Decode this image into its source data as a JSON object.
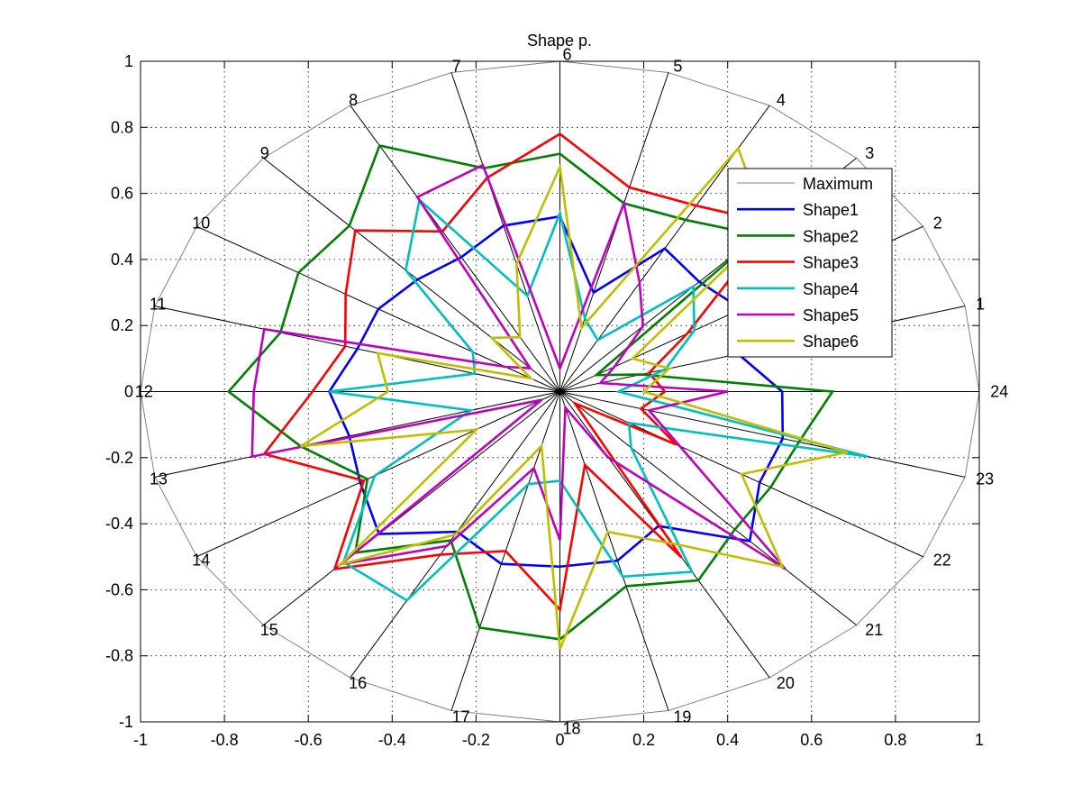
{
  "chart_data": {
    "type": "radar",
    "title": "Shape p.",
    "xlim": [
      -1,
      1
    ],
    "ylim": [
      -1,
      1
    ],
    "x_ticks": [
      -1,
      -0.8,
      -0.6,
      -0.4,
      -0.2,
      0,
      0.2,
      0.4,
      0.6,
      0.8,
      1
    ],
    "y_ticks": [
      -1,
      -0.8,
      -0.6,
      -0.4,
      -0.2,
      0,
      0.2,
      0.4,
      0.6,
      0.8,
      1
    ],
    "x_tick_labels": [
      "-1",
      "-0.8",
      "-0.6",
      "-0.4",
      "-0.2",
      "0",
      "0.2",
      "0.4",
      "0.6",
      "0.8",
      "1"
    ],
    "y_tick_labels": [
      "-1",
      "-0.8",
      "-0.6",
      "-0.4",
      "-0.2",
      "0",
      "0.2",
      "0.4",
      "0.6",
      "0.8",
      "1"
    ],
    "grid": true,
    "legend_position": "top-right",
    "spoke_labels": [
      "1",
      "2",
      "3",
      "4",
      "5",
      "6",
      "7",
      "8",
      "9",
      "10",
      "11",
      "12",
      "13",
      "14",
      "15",
      "16",
      "17",
      "18",
      "19",
      "20",
      "21",
      "22",
      "23",
      "24"
    ],
    "maximum": {
      "name": "Maximum",
      "color": "#808080",
      "radius": 1
    },
    "series": [
      {
        "name": "Shape1",
        "color": "#0000ff",
        "values": [
          0.44,
          0.5,
          0.47,
          0.5,
          0.31,
          0.53,
          0.52,
          0.47,
          0.48,
          0.5,
          0.5,
          0.55,
          0.52,
          0.55,
          0.61,
          0.49,
          0.54,
          0.53,
          0.53,
          0.47,
          0.64,
          0.55,
          0.55,
          0.53
        ]
      },
      {
        "name": "Shape2",
        "color": "#008000",
        "values": [
          0.2,
          0.1,
          0.67,
          0.6,
          0.59,
          0.72,
          0.7,
          0.86,
          0.71,
          0.72,
          0.69,
          0.79,
          0.64,
          0.53,
          0.69,
          0.52,
          0.74,
          0.75,
          0.61,
          0.66,
          0.59,
          0.58,
          0.59,
          0.65
        ]
      },
      {
        "name": "Shape3",
        "color": "#ff0000",
        "values": [
          0.22,
          0.35,
          0.72,
          0.65,
          0.64,
          0.78,
          0.67,
          0.56,
          0.69,
          0.59,
          0.53,
          0.59,
          0.73,
          0.54,
          0.76,
          0.57,
          0.5,
          0.66,
          0.23,
          0.58,
          0.05,
          0.32,
          0.2,
          0.25
        ]
      },
      {
        "name": "Shape4",
        "color": "#00bfbf",
        "values": [
          0.26,
          0.37,
          0.45,
          0.18,
          0.23,
          0.54,
          0.3,
          0.67,
          0.52,
          0.24,
          0.21,
          0.55,
          0.22,
          0.51,
          0.73,
          0.73,
          0.29,
          0.27,
          0.58,
          0.63,
          0.24,
          0.19,
          0.76,
          0.14
        ]
      },
      {
        "name": "Shape5",
        "color": "#bf00bf",
        "values": [
          0.1,
          0.15,
          0.28,
          0.38,
          0.59,
          0.07,
          0.71,
          0.68,
          0.1,
          0.15,
          0.73,
          0.73,
          0.76,
          0.05,
          0.74,
          0.54,
          0.24,
          0.45,
          0.05,
          0.23,
          0.76,
          0.33,
          0.22,
          0.4
        ]
      },
      {
        "name": "Shape6",
        "color": "#bfbf00",
        "values": [
          0.27,
          0.2,
          0.7,
          0.85,
          0.2,
          0.68,
          0.4,
          0.19,
          0.23,
          0.08,
          0.45,
          0.41,
          0.64,
          0.23,
          0.74,
          0.5,
          0.17,
          0.78,
          0.44,
          0.53,
          0.75,
          0.5,
          0.71,
          0.2
        ]
      }
    ]
  }
}
